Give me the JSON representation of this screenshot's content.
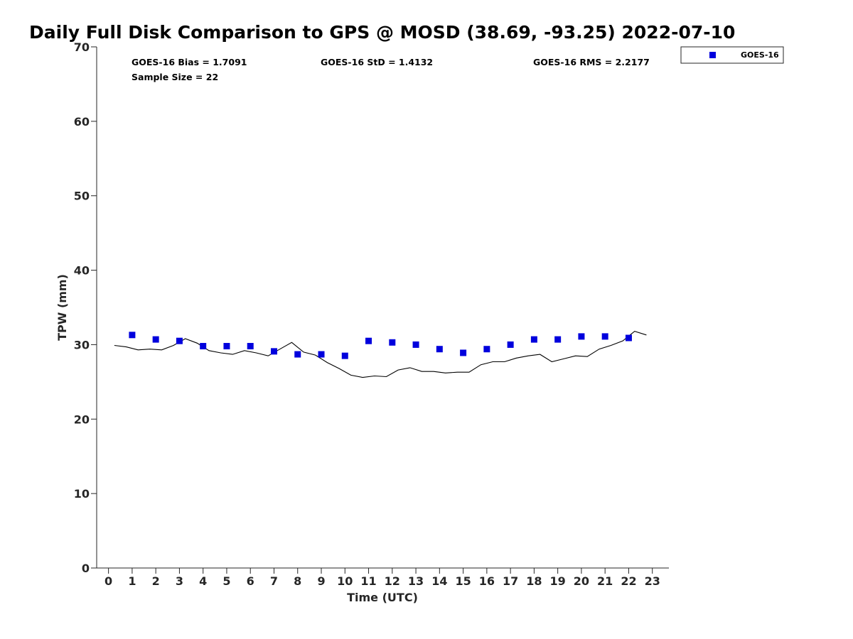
{
  "chart_data": {
    "type": "scatter",
    "title": "Daily Full Disk Comparison to GPS @ MOSD (38.69, -93.25) 2022-07-10",
    "xlabel": "Time (UTC)",
    "ylabel": "TPW (mm)",
    "xlim": [
      -0.5,
      23.7
    ],
    "ylim": [
      0,
      70
    ],
    "x_ticks": [
      "0",
      "1",
      "2",
      "3",
      "4",
      "5",
      "6",
      "7",
      "8",
      "9",
      "10",
      "11",
      "12",
      "13",
      "14",
      "15",
      "16",
      "17",
      "18",
      "19",
      "20",
      "21",
      "22",
      "23"
    ],
    "y_ticks": [
      "0",
      "10",
      "20",
      "30",
      "40",
      "50",
      "60",
      "70"
    ],
    "grid": false,
    "legend_position": "outside-top-right",
    "stats": {
      "bias": "GOES-16 Bias = 1.7091",
      "std": "GOES-16 StD = 1.4132",
      "rms": "GOES-16 RMS = 2.2177",
      "sample_size": "Sample Size = 22"
    },
    "series": [
      {
        "name": "GOES-16",
        "kind": "scatter",
        "marker": "square",
        "color": "#0000dd",
        "x": [
          1,
          2,
          3,
          4,
          5,
          6,
          7,
          8,
          9,
          10,
          11,
          12,
          13,
          14,
          15,
          16,
          17,
          18,
          19,
          20,
          21,
          22
        ],
        "y": [
          31.3,
          30.7,
          30.5,
          29.8,
          29.8,
          29.8,
          29.1,
          28.7,
          28.7,
          28.5,
          30.5,
          30.3,
          30.0,
          29.4,
          28.9,
          29.4,
          30.0,
          30.7,
          30.7,
          31.1,
          31.1,
          30.9
        ]
      },
      {
        "kind": "line",
        "color": "#000000",
        "x": [
          0.25,
          0.75,
          1.25,
          1.75,
          2.25,
          2.75,
          3.25,
          3.75,
          4.25,
          4.75,
          5.25,
          5.75,
          6.25,
          6.75,
          7.25,
          7.75,
          8.25,
          8.75,
          9.25,
          9.75,
          10.25,
          10.75,
          11.25,
          11.75,
          12.25,
          12.75,
          13.25,
          13.75,
          14.25,
          14.75,
          15.25,
          15.75,
          16.25,
          16.75,
          17.25,
          17.75,
          18.25,
          18.75,
          19.25,
          19.75,
          20.25,
          20.75,
          21.25,
          21.75,
          22.25,
          22.75
        ],
        "y": [
          29.9,
          29.7,
          29.3,
          29.4,
          29.3,
          29.9,
          30.8,
          30.2,
          29.2,
          28.9,
          28.7,
          29.2,
          28.9,
          28.5,
          29.4,
          30.3,
          29.0,
          28.6,
          27.6,
          26.8,
          25.9,
          25.6,
          25.8,
          25.7,
          26.6,
          26.9,
          26.4,
          26.4,
          26.2,
          26.3,
          26.3,
          27.3,
          27.7,
          27.7,
          28.2,
          28.5,
          28.7,
          27.7,
          28.1,
          28.5,
          28.4,
          29.4,
          29.9,
          30.5,
          31.8,
          31.3
        ]
      }
    ]
  }
}
